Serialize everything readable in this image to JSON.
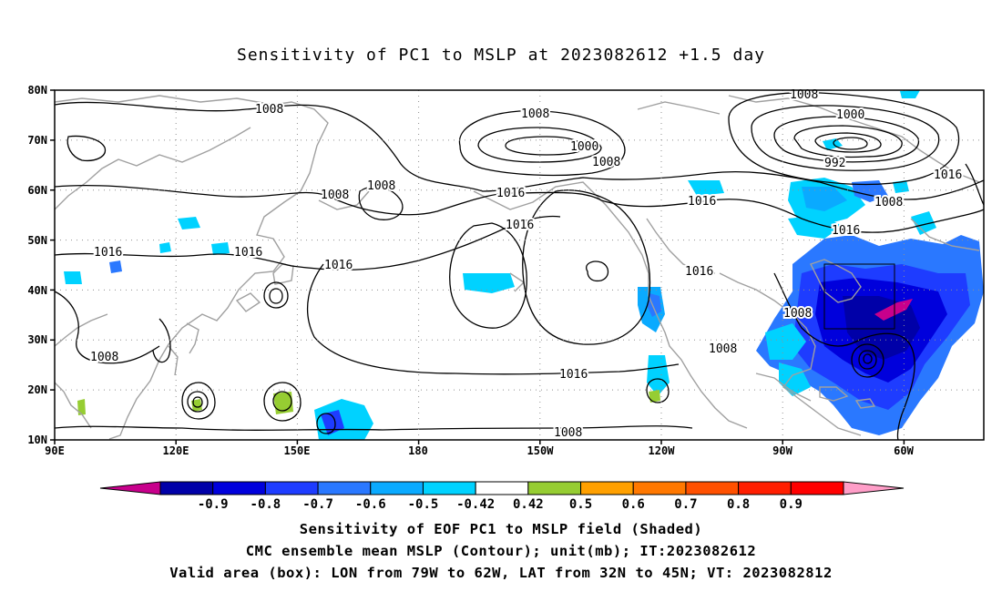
{
  "title": "Sensitivity of PC1 to MSLP at 2023082612 +1.5 day",
  "map": {
    "lat_labels": [
      "80N",
      "70N",
      "60N",
      "50N",
      "40N",
      "30N",
      "20N",
      "10N"
    ],
    "lon_labels": [
      "90E",
      "120E",
      "150E",
      "180",
      "150W",
      "120W",
      "90W",
      "60W"
    ],
    "contour_labels": [
      "1008",
      "1008",
      "1008",
      "1008",
      "1000",
      "992",
      "1016",
      "1008",
      "1016",
      "1016",
      "1000",
      "1008",
      "1008",
      "1016",
      "1016",
      "1016",
      "1016",
      "1016",
      "1008",
      "1008",
      "1016",
      "1008",
      "1008"
    ],
    "valid_box": {
      "lon_from": "79W",
      "lon_to": "62W",
      "lat_from": "32N",
      "lat_to": "45N"
    }
  },
  "colorbar": {
    "labels": [
      "-0.9",
      "-0.8",
      "-0.7",
      "-0.6",
      "-0.5",
      "-0.42",
      "0.42",
      "0.5",
      "0.6",
      "0.7",
      "0.8",
      "0.9"
    ],
    "colors": [
      "#c8008c",
      "#0000a8",
      "#0000dc",
      "#1e3cff",
      "#2a78ff",
      "#0aaaff",
      "#00d2ff",
      "#ffffff",
      "#96cd32",
      "#ffa000",
      "#ff7800",
      "#ff5000",
      "#ff1e00",
      "#ff0000",
      "#ff9ec8"
    ]
  },
  "captions": {
    "line1": "Sensitivity of EOF PC1 to MSLP field (Shaded)",
    "line2": "CMC ensemble mean MSLP (Contour); unit(mb); IT:2023082612",
    "line3": "Valid area (box): LON from 79W to 62W, LAT from 32N to 45N; VT: 2023082812"
  }
}
